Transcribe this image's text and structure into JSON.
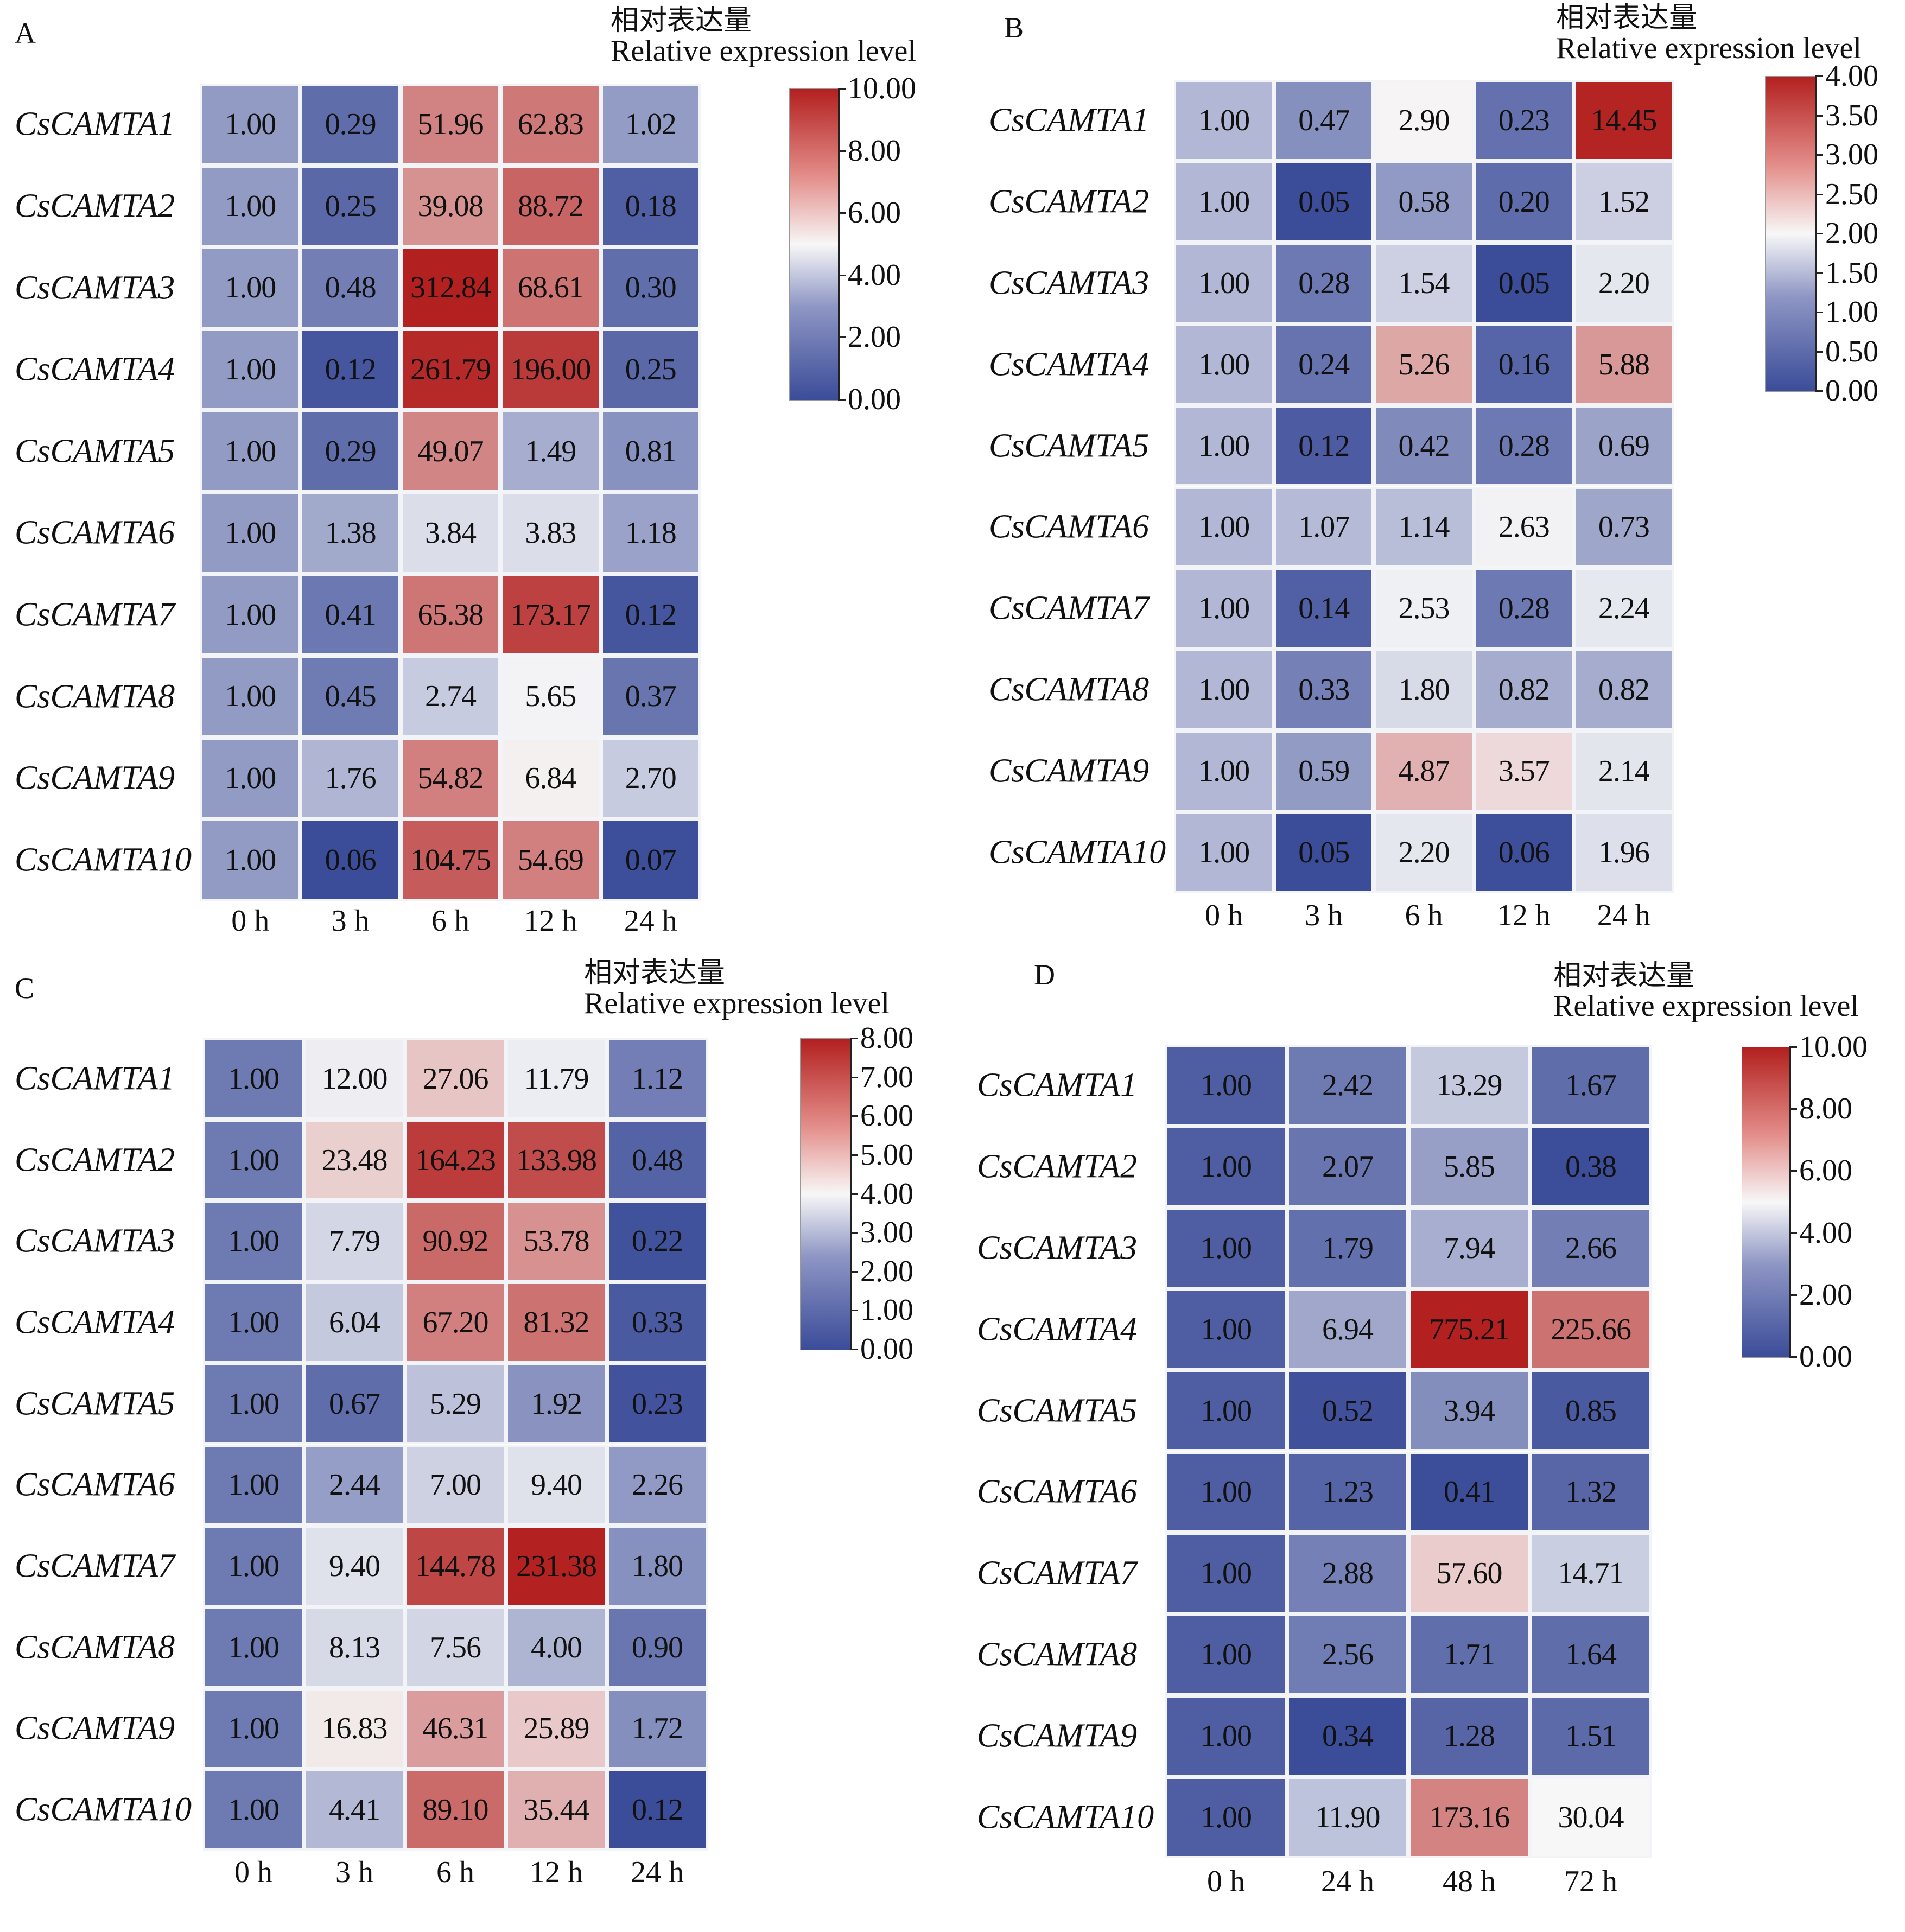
{
  "figure": {
    "legend_title_cn": "相对表达量",
    "legend_title_en": "Relative expression level"
  },
  "chart_data": [
    {
      "type": "heatmap",
      "panel": "A",
      "title": "",
      "legend_title": "相对表达量 Relative expression level",
      "legend_ticks": [
        "0.00",
        "2.00",
        "4.00",
        "6.00",
        "8.00",
        "10.00"
      ],
      "legend_range": [
        0,
        10
      ],
      "colors": {
        "low": "#3b4c99",
        "mid": "#f7f7f7",
        "high": "#b2201f"
      },
      "columns": [
        "0 h",
        "3 h",
        "6 h",
        "12 h",
        "24 h"
      ],
      "rows": [
        "CsCAMTA1",
        "CsCAMTA2",
        "CsCAMTA3",
        "CsCAMTA4",
        "CsCAMTA5",
        "CsCAMTA6",
        "CsCAMTA7",
        "CsCAMTA8",
        "CsCAMTA9",
        "CsCAMTA10"
      ],
      "values": [
        [
          "1.00",
          "0.29",
          "51.96",
          "62.83",
          "1.02"
        ],
        [
          "1.00",
          "0.25",
          "39.08",
          "88.72",
          "0.18"
        ],
        [
          "1.00",
          "0.48",
          "312.84",
          "68.61",
          "0.30"
        ],
        [
          "1.00",
          "0.12",
          "261.79",
          "196.00",
          "0.25"
        ],
        [
          "1.00",
          "0.29",
          "49.07",
          "1.49",
          "0.81"
        ],
        [
          "1.00",
          "1.38",
          "3.84",
          "3.83",
          "1.18"
        ],
        [
          "1.00",
          "0.41",
          "65.38",
          "173.17",
          "0.12"
        ],
        [
          "1.00",
          "0.45",
          "2.74",
          "5.65",
          "0.37"
        ],
        [
          "1.00",
          "1.76",
          "54.82",
          "6.84",
          "2.70"
        ],
        [
          "1.00",
          "0.06",
          "104.75",
          "54.69",
          "0.07"
        ]
      ]
    },
    {
      "type": "heatmap",
      "panel": "B",
      "title": "",
      "legend_title": "相对表达量 Relative expression level",
      "legend_ticks": [
        "0.00",
        "0.50",
        "1.00",
        "1.50",
        "2.00",
        "2.50",
        "3.00",
        "3.50",
        "4.00"
      ],
      "legend_range": [
        0,
        4
      ],
      "colors": {
        "low": "#3b4c99",
        "mid": "#f7f7f7",
        "high": "#b2201f"
      },
      "columns": [
        "0 h",
        "3 h",
        "6 h",
        "12 h",
        "24 h"
      ],
      "rows": [
        "CsCAMTA1",
        "CsCAMTA2",
        "CsCAMTA3",
        "CsCAMTA4",
        "CsCAMTA5",
        "CsCAMTA6",
        "CsCAMTA7",
        "CsCAMTA8",
        "CsCAMTA9",
        "CsCAMTA10"
      ],
      "values": [
        [
          "1.00",
          "0.47",
          "2.90",
          "0.23",
          "14.45"
        ],
        [
          "1.00",
          "0.05",
          "0.58",
          "0.20",
          "1.52"
        ],
        [
          "1.00",
          "0.28",
          "1.54",
          "0.05",
          "2.20"
        ],
        [
          "1.00",
          "0.24",
          "5.26",
          "0.16",
          "5.88"
        ],
        [
          "1.00",
          "0.12",
          "0.42",
          "0.28",
          "0.69"
        ],
        [
          "1.00",
          "1.07",
          "1.14",
          "2.63",
          "0.73"
        ],
        [
          "1.00",
          "0.14",
          "2.53",
          "0.28",
          "2.24"
        ],
        [
          "1.00",
          "0.33",
          "1.80",
          "0.82",
          "0.82"
        ],
        [
          "1.00",
          "0.59",
          "4.87",
          "3.57",
          "2.14"
        ],
        [
          "1.00",
          "0.05",
          "2.20",
          "0.06",
          "1.96"
        ]
      ]
    },
    {
      "type": "heatmap",
      "panel": "C",
      "title": "",
      "legend_title": "相对表达量 Relative expression level",
      "legend_ticks": [
        "0.00",
        "1.00",
        "2.00",
        "3.00",
        "4.00",
        "5.00",
        "6.00",
        "7.00",
        "8.00"
      ],
      "legend_range": [
        0,
        8
      ],
      "colors": {
        "low": "#3b4c99",
        "mid": "#f7f7f7",
        "high": "#b2201f"
      },
      "columns": [
        "0 h",
        "3 h",
        "6 h",
        "12 h",
        "24 h"
      ],
      "rows": [
        "CsCAMTA1",
        "CsCAMTA2",
        "CsCAMTA3",
        "CsCAMTA4",
        "CsCAMTA5",
        "CsCAMTA6",
        "CsCAMTA7",
        "CsCAMTA8",
        "CsCAMTA9",
        "CsCAMTA10"
      ],
      "values": [
        [
          "1.00",
          "12.00",
          "27.06",
          "11.79",
          "1.12"
        ],
        [
          "1.00",
          "23.48",
          "164.23",
          "133.98",
          "0.48"
        ],
        [
          "1.00",
          "7.79",
          "90.92",
          "53.78",
          "0.22"
        ],
        [
          "1.00",
          "6.04",
          "67.20",
          "81.32",
          "0.33"
        ],
        [
          "1.00",
          "0.67",
          "5.29",
          "1.92",
          "0.23"
        ],
        [
          "1.00",
          "2.44",
          "7.00",
          "9.40",
          "2.26"
        ],
        [
          "1.00",
          "9.40",
          "144.78",
          "231.38",
          "1.80"
        ],
        [
          "1.00",
          "8.13",
          "7.56",
          "4.00",
          "0.90"
        ],
        [
          "1.00",
          "16.83",
          "46.31",
          "25.89",
          "1.72"
        ],
        [
          "1.00",
          "4.41",
          "89.10",
          "35.44",
          "0.12"
        ]
      ]
    },
    {
      "type": "heatmap",
      "panel": "D",
      "title": "",
      "legend_title": "相对表达量 Relative expression level",
      "legend_ticks": [
        "0.00",
        "2.00",
        "4.00",
        "6.00",
        "8.00",
        "10.00"
      ],
      "legend_range": [
        0,
        10
      ],
      "colors": {
        "low": "#3b4c99",
        "mid": "#f7f7f7",
        "high": "#b2201f"
      },
      "columns": [
        "0 h",
        "24 h",
        "48 h",
        "72 h"
      ],
      "rows": [
        "CsCAMTA1",
        "CsCAMTA2",
        "CsCAMTA3",
        "CsCAMTA4",
        "CsCAMTA5",
        "CsCAMTA6",
        "CsCAMTA7",
        "CsCAMTA8",
        "CsCAMTA9",
        "CsCAMTA10"
      ],
      "values": [
        [
          "1.00",
          "2.42",
          "13.29",
          "1.67"
        ],
        [
          "1.00",
          "2.07",
          "5.85",
          "0.38"
        ],
        [
          "1.00",
          "1.79",
          "7.94",
          "2.66"
        ],
        [
          "1.00",
          "6.94",
          "775.21",
          "225.66"
        ],
        [
          "1.00",
          "0.52",
          "3.94",
          "0.85"
        ],
        [
          "1.00",
          "1.23",
          "0.41",
          "1.32"
        ],
        [
          "1.00",
          "2.88",
          "57.60",
          "14.71"
        ],
        [
          "1.00",
          "2.56",
          "1.71",
          "1.64"
        ],
        [
          "1.00",
          "0.34",
          "1.28",
          "1.51"
        ],
        [
          "1.00",
          "11.90",
          "173.16",
          "30.04"
        ]
      ]
    }
  ]
}
